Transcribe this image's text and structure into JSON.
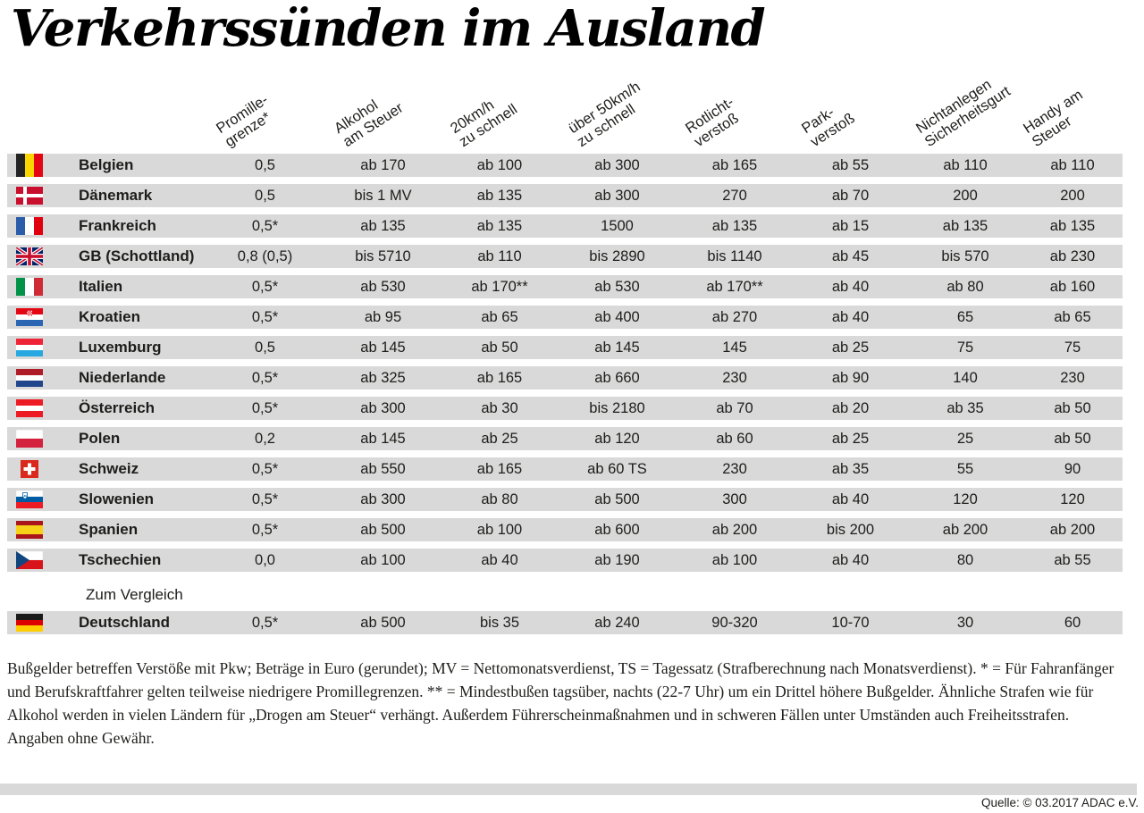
{
  "chart_data": {
    "type": "table",
    "title": "Verkehrssünden im Ausland",
    "columns": [
      {
        "lines": [
          "Promille-",
          "grenze*"
        ]
      },
      {
        "lines": [
          "Alkohol",
          "am Steuer"
        ]
      },
      {
        "lines": [
          "20km/h",
          "zu schnell"
        ]
      },
      {
        "lines": [
          "über 50km/h",
          "zu schnell"
        ]
      },
      {
        "lines": [
          "Rotlicht-",
          "verstoß"
        ]
      },
      {
        "lines": [
          "Park-",
          "verstoß"
        ]
      },
      {
        "lines": [
          "Nichtanlegen",
          "Sicherheitsgurt"
        ]
      },
      {
        "lines": [
          "Handy am",
          "Steuer"
        ]
      }
    ],
    "rows": [
      {
        "country": "Belgien",
        "flag": "be",
        "values": [
          "0,5",
          "ab 170",
          "ab 100",
          "ab 300",
          "ab 165",
          "ab 55",
          "ab 110",
          "ab 110"
        ]
      },
      {
        "country": "Dänemark",
        "flag": "dk",
        "values": [
          "0,5",
          "bis 1 MV",
          "ab 135",
          "ab 300",
          "270",
          "ab 70",
          "200",
          "200"
        ]
      },
      {
        "country": "Frankreich",
        "flag": "fr",
        "values": [
          "0,5*",
          "ab 135",
          "ab 135",
          "1500",
          "ab 135",
          "ab 15",
          "ab 135",
          "ab 135"
        ]
      },
      {
        "country": "GB (Schottland)",
        "flag": "gb",
        "values": [
          "0,8 (0,5)",
          "bis 5710",
          "ab 110",
          "bis 2890",
          "bis 1140",
          "ab 45",
          "bis 570",
          "ab 230"
        ]
      },
      {
        "country": "Italien",
        "flag": "it",
        "values": [
          "0,5*",
          "ab 530",
          "ab 170**",
          "ab 530",
          "ab 170**",
          "ab 40",
          "ab 80",
          "ab 160"
        ]
      },
      {
        "country": "Kroatien",
        "flag": "hr",
        "values": [
          "0,5*",
          "ab 95",
          "ab 65",
          "ab 400",
          "ab 270",
          "ab 40",
          "65",
          "ab 65"
        ]
      },
      {
        "country": "Luxemburg",
        "flag": "lu",
        "values": [
          "0,5",
          "ab 145",
          "ab 50",
          "ab 145",
          "145",
          "ab 25",
          "75",
          "75"
        ]
      },
      {
        "country": "Niederlande",
        "flag": "nl",
        "values": [
          "0,5*",
          "ab 325",
          "ab 165",
          "ab 660",
          "230",
          "ab 90",
          "140",
          "230"
        ]
      },
      {
        "country": "Österreich",
        "flag": "at",
        "values": [
          "0,5*",
          "ab 300",
          "ab 30",
          "bis 2180",
          "ab 70",
          "ab 20",
          "ab 35",
          "ab 50"
        ]
      },
      {
        "country": "Polen",
        "flag": "pl",
        "values": [
          "0,2",
          "ab 145",
          "ab 25",
          "ab 120",
          "ab 60",
          "ab 25",
          "25",
          "ab 50"
        ]
      },
      {
        "country": "Schweiz",
        "flag": "ch",
        "values": [
          "0,5*",
          "ab 550",
          "ab 165",
          "ab 60 TS",
          "230",
          "ab 35",
          "55",
          "90"
        ]
      },
      {
        "country": "Slowenien",
        "flag": "si",
        "values": [
          "0,5*",
          "ab 300",
          "ab 80",
          "ab 500",
          "300",
          "ab 40",
          "120",
          "120"
        ]
      },
      {
        "country": "Spanien",
        "flag": "es",
        "values": [
          "0,5*",
          "ab 500",
          "ab 100",
          "ab 600",
          "ab 200",
          "bis 200",
          "ab 200",
          "ab 200"
        ]
      },
      {
        "country": "Tschechien",
        "flag": "cz",
        "values": [
          "0,0",
          "ab 100",
          "ab 40",
          "ab 190",
          "ab 100",
          "ab 40",
          "80",
          "ab 55"
        ]
      }
    ],
    "comparison_label": "Zum Vergleich",
    "comparison_row": {
      "country": "Deutschland",
      "flag": "de",
      "values": [
        "0,5*",
        "ab 500",
        "bis 35",
        "ab 240",
        "90-320",
        "10-70",
        "30",
        "60"
      ]
    },
    "footnote": "Bußgelder betreffen Verstöße mit Pkw; Beträge in Euro (gerundet); MV = Nettomonatsverdienst, TS = Tagessatz (Strafberechnung nach Monatsverdienst). * = Für Fahranfänger und Berufskraftfahrer gelten teilweise niedrigere Promillegrenzen. ** = Mindestbußen tagsüber, nachts (22-7 Uhr) um ein Drittel höhere Bußgelder. Ähnliche Strafen wie für Alkohol werden in vielen Ländern für „Drogen am Steuer“ verhängt. Außerdem Führerscheinmaßnahmen und in schweren Fällen unter Umständen auch Freiheitsstrafen. Angaben ohne Gewähr.",
    "source": "Quelle: © 03.2017 ADAC  e.V.",
    "colors": {
      "row_background": "#d9d9d9",
      "text": "#1d1d1b",
      "background": "#ffffff"
    }
  }
}
